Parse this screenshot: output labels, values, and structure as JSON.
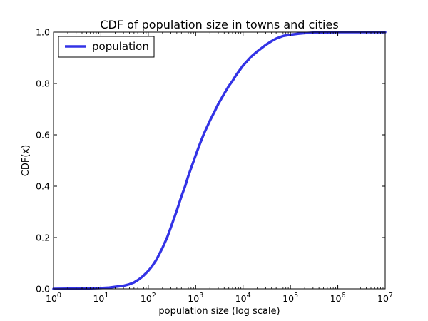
{
  "chart_data": {
    "type": "line",
    "title": "CDF of population size in towns and cities",
    "xlabel": "population size (log scale)",
    "ylabel": "CDF(x)",
    "xscale": "log",
    "xlim": [
      1,
      10000000
    ],
    "ylim": [
      0.0,
      1.0
    ],
    "grid": false,
    "legend_position": "top-left",
    "x_ticks": [
      {
        "value": 1,
        "base": "10",
        "exp": "0"
      },
      {
        "value": 10,
        "base": "10",
        "exp": "1"
      },
      {
        "value": 100,
        "base": "10",
        "exp": "2"
      },
      {
        "value": 1000,
        "base": "10",
        "exp": "3"
      },
      {
        "value": 10000,
        "base": "10",
        "exp": "4"
      },
      {
        "value": 100000,
        "base": "10",
        "exp": "5"
      },
      {
        "value": 1000000,
        "base": "10",
        "exp": "6"
      },
      {
        "value": 10000000,
        "base": "10",
        "exp": "7"
      }
    ],
    "y_ticks": [
      {
        "value": 0.0,
        "label": "0.0"
      },
      {
        "value": 0.2,
        "label": "0.2"
      },
      {
        "value": 0.4,
        "label": "0.4"
      },
      {
        "value": 0.6,
        "label": "0.6"
      },
      {
        "value": 0.8,
        "label": "0.8"
      },
      {
        "value": 1.0,
        "label": "1.0"
      }
    ],
    "series": [
      {
        "name": "population",
        "color": "#3333e6",
        "x": [
          1,
          3,
          10,
          15,
          20,
          30,
          40,
          50,
          60,
          70,
          80,
          100,
          120,
          150,
          200,
          250,
          300,
          400,
          500,
          600,
          700,
          800,
          1000,
          1200,
          1500,
          2000,
          2500,
          3000,
          4000,
          5000,
          6000,
          7000,
          10000,
          15000,
          20000,
          30000,
          40000,
          50000,
          70000,
          100000,
          150000,
          200000,
          300000,
          500000,
          1000000,
          10000000
        ],
        "y": [
          0.0,
          0.001,
          0.003,
          0.005,
          0.008,
          0.012,
          0.018,
          0.025,
          0.034,
          0.043,
          0.052,
          0.07,
          0.088,
          0.115,
          0.16,
          0.2,
          0.24,
          0.305,
          0.36,
          0.4,
          0.44,
          0.47,
          0.52,
          0.56,
          0.605,
          0.655,
          0.69,
          0.72,
          0.76,
          0.79,
          0.81,
          0.83,
          0.87,
          0.905,
          0.925,
          0.95,
          0.965,
          0.975,
          0.985,
          0.99,
          0.994,
          0.996,
          0.998,
          0.999,
          1.0,
          1.0
        ]
      }
    ]
  }
}
